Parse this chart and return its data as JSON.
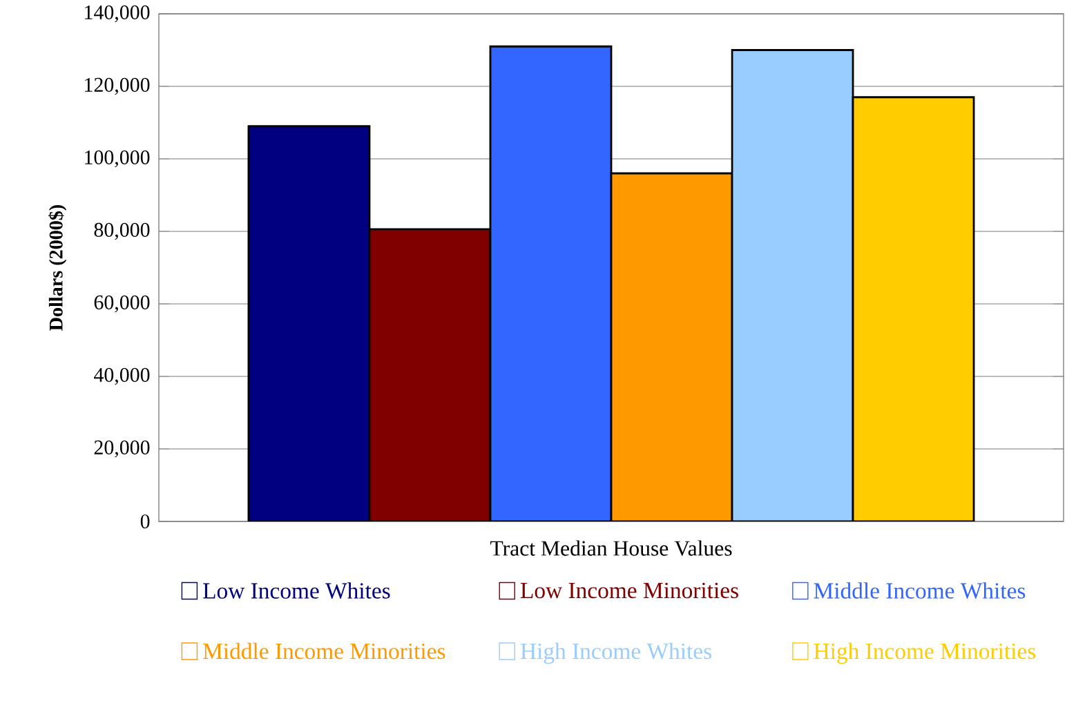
{
  "chart_data": {
    "type": "bar",
    "xlabel": "Tract Median House Values",
    "ylabel": "Dollars (2000$)",
    "categories": [
      null
    ],
    "series": [
      {
        "name": "Low Income Whites",
        "color": "#000080",
        "values": [
          109000
        ]
      },
      {
        "name": "Low Income Minorities",
        "color": "#800000",
        "values": [
          80600
        ]
      },
      {
        "name": "Middle Income Whites",
        "color": "#3366ff",
        "values": [
          131000
        ]
      },
      {
        "name": "Middle Income Minorities",
        "color": "#ff9900",
        "values": [
          96000
        ]
      },
      {
        "name": "High Income Whites",
        "color": "#99ccff",
        "values": [
          130000
        ]
      },
      {
        "name": "High Income Minorities",
        "color": "#ffcc00",
        "values": [
          117000
        ]
      }
    ],
    "ylim": [
      0,
      140000
    ],
    "yticks": [
      0,
      {
        "value": 20000,
        "label": "20,000"
      },
      {
        "value": 40000,
        "label": "40,000"
      },
      {
        "value": 60000,
        "label": "60,000"
      },
      {
        "value": 80000,
        "label": "80,000"
      },
      {
        "value": 100000,
        "label": "100,000"
      },
      {
        "value": 120000,
        "label": "120,000"
      },
      {
        "value": 140000,
        "label": "140,000"
      }
    ],
    "grid": "y",
    "legend": "bottom"
  }
}
